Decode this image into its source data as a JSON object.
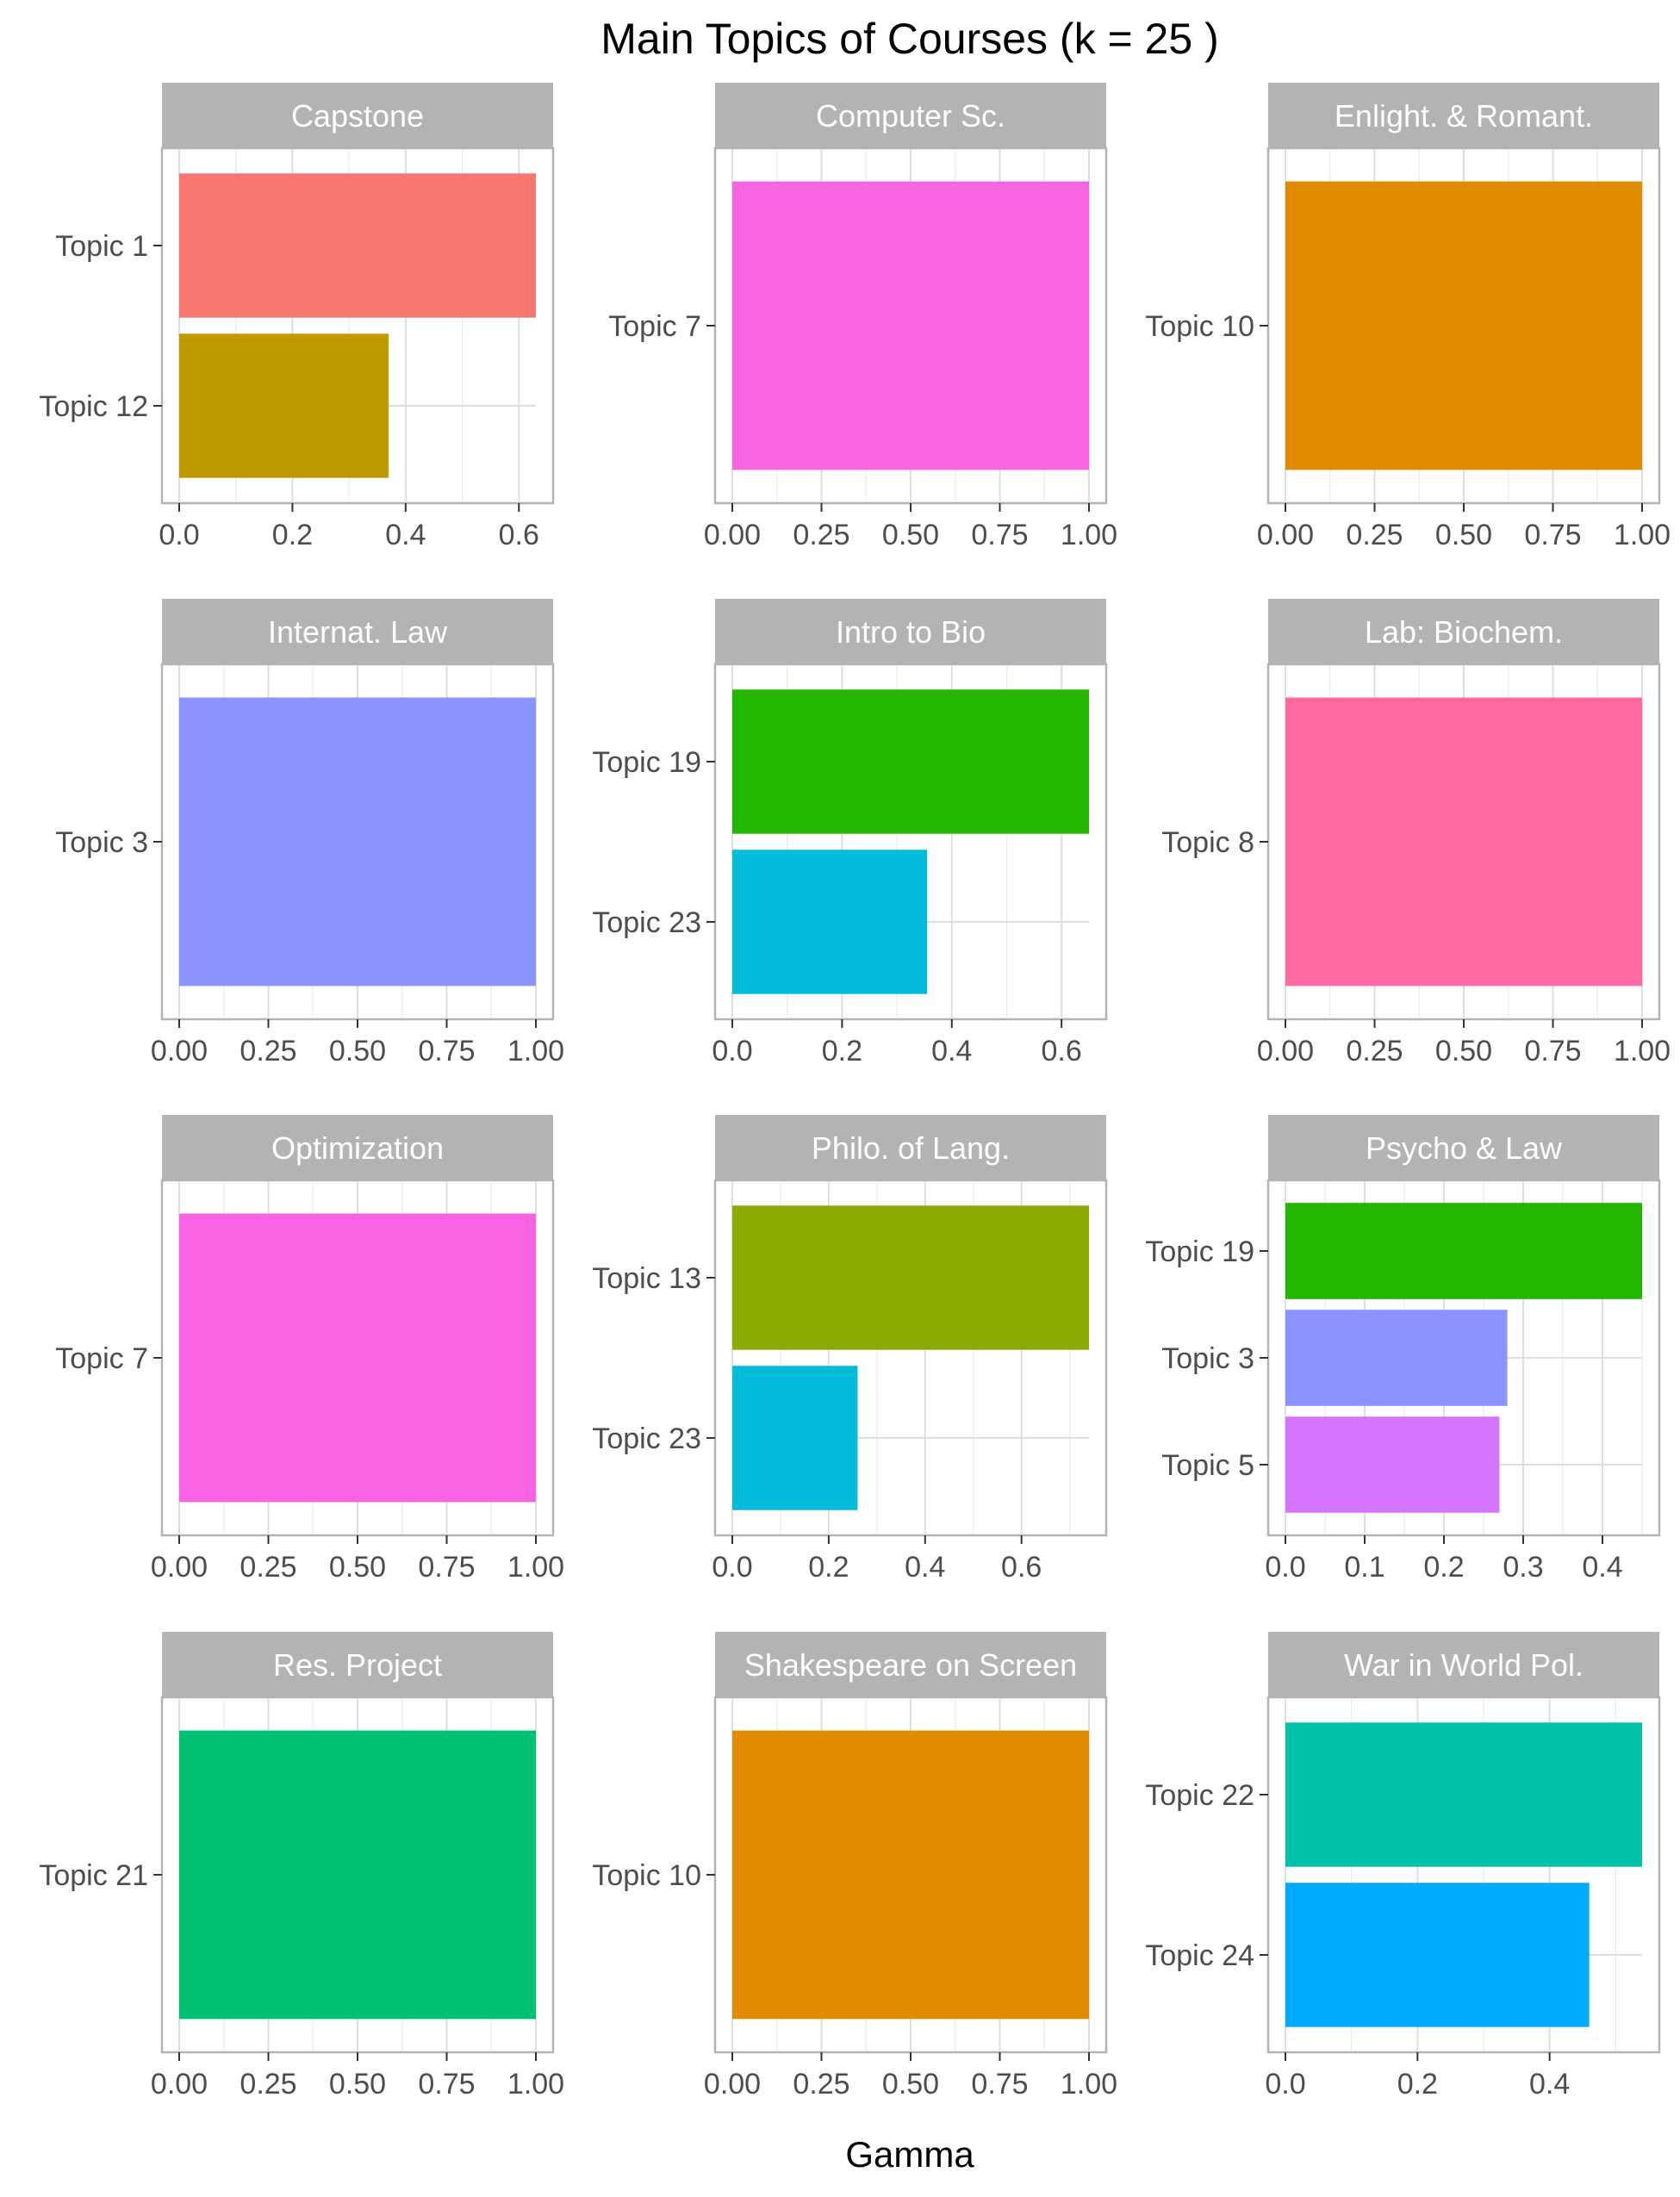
{
  "figure": {
    "title": "Main Topics of  Courses (k = 25 )",
    "xlabel": "Gamma"
  },
  "chart_data": [
    {
      "type": "bar",
      "orientation": "horizontal",
      "panel": "Capstone",
      "categories": [
        "Topic 1",
        "Topic 12"
      ],
      "values": [
        0.63,
        0.37
      ],
      "colors": [
        "#F8766D",
        "#BF9B00"
      ],
      "xlim": [
        0,
        0.63
      ],
      "xticks": [
        "0.0",
        "0.2",
        "0.4",
        "0.6"
      ],
      "xtick_values": [
        0,
        0.2,
        0.4,
        0.6
      ],
      "grid": true
    },
    {
      "type": "bar",
      "orientation": "horizontal",
      "panel": "Computer Sc.",
      "categories": [
        "Topic 7"
      ],
      "values": [
        1.0
      ],
      "colors": [
        "#F763E0"
      ],
      "xlim": [
        0,
        1.0
      ],
      "xticks": [
        "0.00",
        "0.25",
        "0.50",
        "0.75",
        "1.00"
      ],
      "xtick_values": [
        0,
        0.25,
        0.5,
        0.75,
        1.0
      ],
      "grid": true
    },
    {
      "type": "bar",
      "orientation": "horizontal",
      "panel": "Enlight. & Romant.",
      "categories": [
        "Topic 10"
      ],
      "values": [
        1.0
      ],
      "colors": [
        "#E08B00"
      ],
      "xlim": [
        0,
        1.0
      ],
      "xticks": [
        "0.00",
        "0.25",
        "0.50",
        "0.75",
        "1.00"
      ],
      "xtick_values": [
        0,
        0.25,
        0.5,
        0.75,
        1.0
      ],
      "grid": true
    },
    {
      "type": "bar",
      "orientation": "horizontal",
      "panel": "Internat. Law",
      "categories": [
        "Topic 3"
      ],
      "values": [
        1.0
      ],
      "colors": [
        "#8B93FF"
      ],
      "xlim": [
        0,
        1.0
      ],
      "xticks": [
        "0.00",
        "0.25",
        "0.50",
        "0.75",
        "1.00"
      ],
      "xtick_values": [
        0,
        0.25,
        0.5,
        0.75,
        1.0
      ],
      "grid": true
    },
    {
      "type": "bar",
      "orientation": "horizontal",
      "panel": "Intro to Bio",
      "categories": [
        "Topic 19",
        "Topic 23"
      ],
      "values": [
        0.65,
        0.355
      ],
      "colors": [
        "#24B700",
        "#00BBDA"
      ],
      "xlim": [
        0,
        0.65
      ],
      "xticks": [
        "0.0",
        "0.2",
        "0.4",
        "0.6"
      ],
      "xtick_values": [
        0,
        0.2,
        0.4,
        0.6
      ],
      "grid": true
    },
    {
      "type": "bar",
      "orientation": "horizontal",
      "panel": "Lab: Biochem.",
      "categories": [
        "Topic 8"
      ],
      "values": [
        1.0
      ],
      "colors": [
        "#FF68A1"
      ],
      "xlim": [
        0,
        1.0
      ],
      "xticks": [
        "0.00",
        "0.25",
        "0.50",
        "0.75",
        "1.00"
      ],
      "xtick_values": [
        0,
        0.25,
        0.5,
        0.75,
        1.0
      ],
      "grid": true
    },
    {
      "type": "bar",
      "orientation": "horizontal",
      "panel": "Optimization",
      "categories": [
        "Topic 7"
      ],
      "values": [
        1.0
      ],
      "colors": [
        "#F763E0"
      ],
      "xlim": [
        0,
        1.0
      ],
      "xticks": [
        "0.00",
        "0.25",
        "0.50",
        "0.75",
        "1.00"
      ],
      "xtick_values": [
        0,
        0.25,
        0.5,
        0.75,
        1.0
      ],
      "grid": true
    },
    {
      "type": "bar",
      "orientation": "horizontal",
      "panel": "Philo. of Lang.",
      "categories": [
        "Topic 13"
      ],
      "values": [
        0.74
      ],
      "categories_2": [
        "Topic 23"
      ],
      "values_2": [
        0.26
      ],
      "colors": [
        "#8CAB00",
        "#00BBDA"
      ],
      "xlim": [
        0,
        0.74
      ],
      "xticks": [
        "0.0",
        "0.2",
        "0.4",
        "0.6"
      ],
      "xtick_values": [
        0,
        0.2,
        0.4,
        0.6
      ],
      "grid": true
    },
    {
      "type": "bar",
      "orientation": "horizontal",
      "panel": "Psycho & Law",
      "categories": [
        "Topic 19",
        "Topic 3",
        "Topic 5"
      ],
      "values": [
        0.45,
        0.28,
        0.27
      ],
      "colors": [
        "#24B700",
        "#8B93FF",
        "#D575FE"
      ],
      "xlim": [
        0,
        0.45
      ],
      "xticks": [
        "0.0",
        "0.1",
        "0.2",
        "0.3",
        "0.4"
      ],
      "xtick_values": [
        0,
        0.1,
        0.2,
        0.3,
        0.4
      ],
      "grid": true
    },
    {
      "type": "bar",
      "orientation": "horizontal",
      "panel": "Res. Project",
      "categories": [
        "Topic 21"
      ],
      "values": [
        1.0
      ],
      "colors": [
        "#00C072"
      ],
      "xlim": [
        0,
        1.0
      ],
      "xticks": [
        "0.00",
        "0.25",
        "0.50",
        "0.75",
        "1.00"
      ],
      "xtick_values": [
        0,
        0.25,
        0.5,
        0.75,
        1.0
      ],
      "grid": true
    },
    {
      "type": "bar",
      "orientation": "horizontal",
      "panel": "Shakespeare on Screen",
      "categories": [
        "Topic 10"
      ],
      "values": [
        1.0
      ],
      "colors": [
        "#E08B00"
      ],
      "xlim": [
        0,
        1.0
      ],
      "xticks": [
        "0.00",
        "0.25",
        "0.50",
        "0.75",
        "1.00"
      ],
      "xtick_values": [
        0,
        0.25,
        0.5,
        0.75,
        1.0
      ],
      "grid": true
    },
    {
      "type": "bar",
      "orientation": "horizontal",
      "panel": "War in World Pol.",
      "categories": [
        "Topic 22",
        "Topic 24"
      ],
      "values": [
        0.54,
        0.46
      ],
      "colors": [
        "#00C1AA",
        "#00ABFD"
      ],
      "xlim": [
        0,
        0.54
      ],
      "xticks": [
        "0.0",
        "0.2",
        "0.4"
      ],
      "xtick_values": [
        0,
        0.2,
        0.4
      ],
      "grid": true
    }
  ]
}
